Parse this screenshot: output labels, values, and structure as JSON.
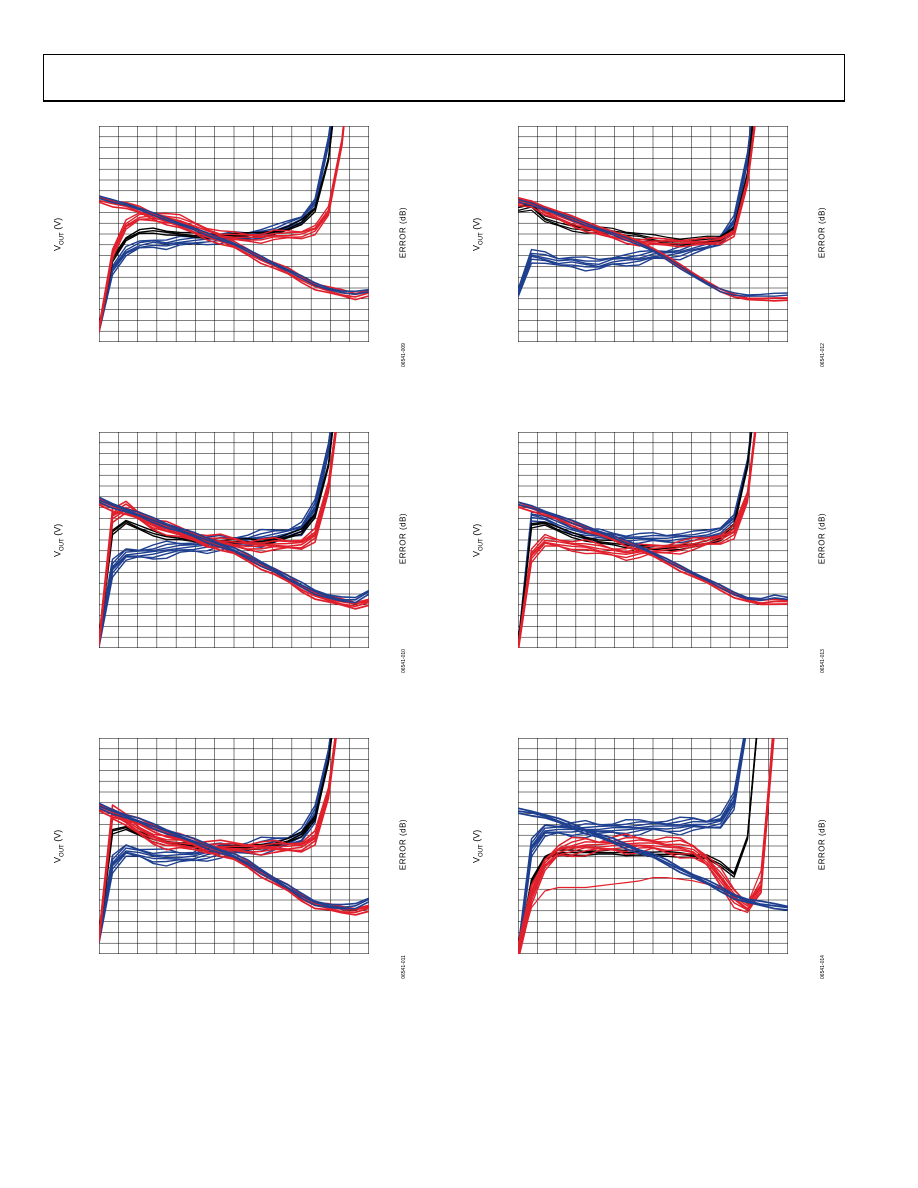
{
  "colors": {
    "blue": "#1f3f8f",
    "red": "#e0202c",
    "black": "#000000",
    "grid": "#000000"
  },
  "chart_data": [
    {
      "type": "line",
      "vout_label": "V",
      "vout_sub": "OUT",
      "vout_unit": " (V)",
      "error_label": "ERROR (dB)",
      "fig_id": "06541-009",
      "x": [
        0,
        5,
        10,
        15,
        20,
        25,
        30,
        35,
        40,
        45,
        50,
        55,
        60,
        65,
        70,
        75,
        80,
        85,
        90,
        95,
        100
      ],
      "series": [
        {
          "color": "blue",
          "spread": 5,
          "width": 1.4,
          "y": [
            -2.6,
            -0.8,
            -0.3,
            -0.1,
            0,
            -0.05,
            0,
            0.05,
            0.1,
            0.1,
            0.15,
            0.2,
            0.3,
            0.35,
            0.5,
            0.7,
            1.2,
            3,
            6,
            9,
            12
          ]
        },
        {
          "color": "black",
          "spread": 3,
          "width": 1.4,
          "y": [
            -2.6,
            -0.5,
            0.1,
            0.3,
            0.35,
            0.3,
            0.25,
            0.2,
            0.2,
            0.2,
            0.2,
            0.2,
            0.25,
            0.3,
            0.4,
            0.6,
            1.0,
            2.5,
            6,
            10,
            14
          ]
        },
        {
          "color": "red",
          "spread": 5,
          "width": 1.4,
          "y": [
            -2.6,
            -0.3,
            0.5,
            0.75,
            0.8,
            0.75,
            0.65,
            0.5,
            0.35,
            0.2,
            0.15,
            0.15,
            0.15,
            0.2,
            0.2,
            0.25,
            0.4,
            0.9,
            3,
            7,
            12
          ]
        },
        {
          "color": "red",
          "spread": 4,
          "width": 1.6,
          "y": [
            1.3,
            1.2,
            1.1,
            0.95,
            0.8,
            0.65,
            0.5,
            0.35,
            0.2,
            0.05,
            -0.1,
            -0.3,
            -0.5,
            -0.7,
            -0.9,
            -1.1,
            -1.3,
            -1.45,
            -1.55,
            -1.6,
            -1.5
          ]
        },
        {
          "color": "blue",
          "spread": 2,
          "width": 1.6,
          "y": [
            1.35,
            1.25,
            1.15,
            1.0,
            0.85,
            0.7,
            0.55,
            0.4,
            0.25,
            0.1,
            -0.05,
            -0.25,
            -0.45,
            -0.65,
            -0.85,
            -1.05,
            -1.25,
            -1.4,
            -1.5,
            -1.52,
            -1.45
          ]
        }
      ]
    },
    {
      "type": "line",
      "vout_label": "V",
      "vout_sub": "OUT",
      "vout_unit": " (V)",
      "error_label": "ERROR (dB)",
      "fig_id": "06541-012",
      "x": [
        0,
        5,
        10,
        15,
        20,
        25,
        30,
        35,
        40,
        45,
        50,
        55,
        60,
        65,
        70,
        75,
        80,
        85,
        90,
        95,
        100
      ],
      "series": [
        {
          "color": "blue",
          "spread": 6,
          "width": 1.4,
          "y": [
            -1.5,
            -0.4,
            -0.5,
            -0.6,
            -0.55,
            -0.65,
            -0.7,
            -0.55,
            -0.5,
            -0.5,
            -0.4,
            -0.35,
            -0.3,
            -0.2,
            -0.1,
            0.1,
            0.6,
            2.5,
            6,
            10,
            14
          ]
        },
        {
          "color": "black",
          "spread": 4,
          "width": 1.2,
          "y": [
            1.0,
            1.1,
            0.7,
            0.55,
            0.45,
            0.4,
            0.35,
            0.3,
            0.25,
            0.2,
            0.1,
            0.05,
            0.05,
            0.05,
            0.05,
            0.1,
            0.4,
            2,
            6,
            10,
            14
          ]
        },
        {
          "color": "red",
          "spread": 4,
          "width": 1.6,
          "y": [
            1.2,
            1.2,
            0.9,
            0.75,
            0.6,
            0.45,
            0.3,
            0.2,
            0.1,
            0.0,
            0.0,
            0.0,
            0.0,
            0.0,
            0.0,
            0.05,
            0.3,
            1.8,
            5,
            9,
            13
          ]
        },
        {
          "color": "red",
          "spread": 2,
          "width": 1.8,
          "y": [
            1.3,
            1.2,
            1.05,
            0.9,
            0.75,
            0.6,
            0.45,
            0.3,
            0.15,
            0,
            -0.2,
            -0.45,
            -0.7,
            -0.95,
            -1.2,
            -1.45,
            -1.6,
            -1.7,
            -1.72,
            -1.72,
            -1.7
          ]
        },
        {
          "color": "blue",
          "spread": 2,
          "width": 1.4,
          "y": [
            1.25,
            1.15,
            1.0,
            0.85,
            0.7,
            0.55,
            0.4,
            0.25,
            0.1,
            -0.05,
            -0.25,
            -0.5,
            -0.75,
            -1.0,
            -1.25,
            -1.45,
            -1.55,
            -1.6,
            -1.6,
            -1.58,
            -1.55
          ]
        }
      ]
    },
    {
      "type": "line",
      "vout_label": "V",
      "vout_sub": "OUT",
      "vout_unit": " (V)",
      "error_label": "ERROR (dB)",
      "fig_id": "06541-010",
      "x": [
        0,
        5,
        10,
        15,
        20,
        25,
        30,
        35,
        40,
        45,
        50,
        55,
        60,
        65,
        70,
        75,
        80,
        85,
        90,
        95,
        100
      ],
      "series": [
        {
          "color": "blue",
          "spread": 7,
          "width": 1.4,
          "y": [
            -2.8,
            -0.6,
            -0.2,
            -0.15,
            -0.1,
            -0.05,
            0,
            0.05,
            0.1,
            0.15,
            0.2,
            0.25,
            0.3,
            0.35,
            0.45,
            0.6,
            1.2,
            3,
            6,
            10,
            14
          ]
        },
        {
          "color": "black",
          "spread": 3,
          "width": 1.4,
          "y": [
            -2.8,
            0.5,
            0.8,
            0.6,
            0.45,
            0.35,
            0.3,
            0.25,
            0.2,
            0.2,
            0.2,
            0.2,
            0.2,
            0.25,
            0.35,
            0.5,
            1.0,
            2.5,
            6,
            10,
            14
          ]
        },
        {
          "color": "red",
          "spread": 6,
          "width": 1.6,
          "y": [
            -2.8,
            1.0,
            1.2,
            0.95,
            0.75,
            0.6,
            0.45,
            0.35,
            0.25,
            0.2,
            0.15,
            0.1,
            0.1,
            0.1,
            0.1,
            0.15,
            0.4,
            1.8,
            5,
            9,
            13
          ]
        },
        {
          "color": "red",
          "spread": 4,
          "width": 1.8,
          "y": [
            1.4,
            1.25,
            1.1,
            0.95,
            0.8,
            0.65,
            0.5,
            0.35,
            0.2,
            0.05,
            -0.1,
            -0.3,
            -0.5,
            -0.7,
            -0.95,
            -1.2,
            -1.4,
            -1.55,
            -1.65,
            -1.7,
            -1.6
          ]
        },
        {
          "color": "blue",
          "spread": 3,
          "width": 1.6,
          "y": [
            1.45,
            1.3,
            1.15,
            1.0,
            0.85,
            0.7,
            0.55,
            0.4,
            0.25,
            0.1,
            -0.05,
            -0.25,
            -0.45,
            -0.65,
            -0.9,
            -1.1,
            -1.3,
            -1.45,
            -1.55,
            -1.55,
            -1.3
          ]
        }
      ]
    },
    {
      "type": "line",
      "vout_label": "V",
      "vout_sub": "OUT",
      "vout_unit": " (V)",
      "error_label": "ERROR (dB)",
      "fig_id": "06541-013",
      "x": [
        0,
        5,
        10,
        15,
        20,
        25,
        30,
        35,
        40,
        45,
        50,
        55,
        60,
        65,
        70,
        75,
        80,
        85,
        90,
        95,
        100
      ],
      "series": [
        {
          "color": "blue",
          "spread": 5,
          "width": 1.4,
          "y": [
            -3,
            1.0,
            0.9,
            0.7,
            0.55,
            0.45,
            0.4,
            0.35,
            0.3,
            0.3,
            0.3,
            0.3,
            0.35,
            0.35,
            0.4,
            0.55,
            0.9,
            2.5,
            6,
            10,
            14
          ]
        },
        {
          "color": "black",
          "spread": 3,
          "width": 1.4,
          "y": [
            -3,
            0.7,
            0.75,
            0.55,
            0.4,
            0.3,
            0.2,
            0.15,
            0.1,
            0.05,
            0.0,
            0.0,
            0.05,
            0.1,
            0.15,
            0.3,
            0.7,
            2.5,
            6,
            10,
            14
          ]
        },
        {
          "color": "red",
          "spread": 6,
          "width": 1.4,
          "y": [
            -3,
            -0.2,
            0.2,
            0.15,
            0.1,
            0.05,
            -0.05,
            -0.1,
            -0.15,
            -0.1,
            -0.05,
            0.0,
            0.05,
            0.1,
            0.2,
            0.3,
            0.5,
            1.5,
            5,
            9,
            13
          ]
        },
        {
          "color": "red",
          "spread": 3,
          "width": 1.8,
          "y": [
            1.3,
            1.2,
            1.05,
            0.9,
            0.75,
            0.6,
            0.45,
            0.3,
            0.15,
            0,
            -0.2,
            -0.4,
            -0.6,
            -0.8,
            -1.0,
            -1.2,
            -1.4,
            -1.55,
            -1.65,
            -1.6,
            -1.6
          ]
        },
        {
          "color": "blue",
          "spread": 2,
          "width": 1.6,
          "y": [
            1.35,
            1.25,
            1.1,
            0.95,
            0.8,
            0.65,
            0.5,
            0.35,
            0.2,
            0.05,
            -0.15,
            -0.35,
            -0.55,
            -0.75,
            -0.95,
            -1.15,
            -1.35,
            -1.5,
            -1.55,
            -1.45,
            -1.5
          ]
        }
      ]
    },
    {
      "type": "line",
      "vout_label": "V",
      "vout_sub": "OUT",
      "vout_unit": " (V)",
      "error_label": "ERROR (dB)",
      "fig_id": "06541-011",
      "x": [
        0,
        5,
        10,
        15,
        20,
        25,
        30,
        35,
        40,
        45,
        50,
        55,
        60,
        65,
        70,
        75,
        80,
        85,
        90,
        95,
        100
      ],
      "series": [
        {
          "color": "blue",
          "spread": 7,
          "width": 1.4,
          "y": [
            -2.5,
            -0.3,
            0.1,
            0.05,
            -0.05,
            -0.1,
            -0.1,
            -0.05,
            0.05,
            0.1,
            0.15,
            0.2,
            0.25,
            0.3,
            0.4,
            0.6,
            1.2,
            3,
            6,
            10,
            14
          ]
        },
        {
          "color": "black",
          "spread": 3,
          "width": 1.4,
          "y": [
            -2.5,
            0.7,
            0.8,
            0.6,
            0.45,
            0.35,
            0.3,
            0.25,
            0.2,
            0.2,
            0.2,
            0.2,
            0.25,
            0.3,
            0.4,
            0.6,
            1.1,
            2.8,
            6,
            10,
            14
          ]
        },
        {
          "color": "red",
          "spread": 6,
          "width": 1.6,
          "y": [
            -2.5,
            1.3,
            1.0,
            0.7,
            0.5,
            0.35,
            0.3,
            0.25,
            0.25,
            0.2,
            0.2,
            0.2,
            0.2,
            0.2,
            0.2,
            0.25,
            0.5,
            1.8,
            5,
            9,
            13
          ]
        },
        {
          "color": "red",
          "spread": 4,
          "width": 1.8,
          "y": [
            1.4,
            1.25,
            1.1,
            0.95,
            0.8,
            0.65,
            0.5,
            0.35,
            0.2,
            0.05,
            -0.1,
            -0.3,
            -0.55,
            -0.8,
            -1.05,
            -1.3,
            -1.5,
            -1.6,
            -1.7,
            -1.7,
            -1.6
          ]
        },
        {
          "color": "blue",
          "spread": 3,
          "width": 1.6,
          "y": [
            1.45,
            1.3,
            1.15,
            1.0,
            0.85,
            0.7,
            0.55,
            0.4,
            0.25,
            0.1,
            -0.05,
            -0.25,
            -0.5,
            -0.75,
            -1.0,
            -1.25,
            -1.45,
            -1.55,
            -1.6,
            -1.55,
            -1.35
          ]
        }
      ]
    },
    {
      "type": "line",
      "vout_label": "V",
      "vout_sub": "OUT",
      "vout_unit": " (V)",
      "error_label": "ERROR (dB)",
      "fig_id": "06541-014",
      "x": [
        0,
        5,
        10,
        15,
        20,
        25,
        30,
        35,
        40,
        45,
        50,
        55,
        60,
        65,
        70,
        75,
        80,
        85,
        90,
        95,
        100
      ],
      "series": [
        {
          "color": "blue",
          "spread": 7,
          "width": 1.4,
          "y": [
            -3,
            0.2,
            0.7,
            0.75,
            0.75,
            0.75,
            0.75,
            0.8,
            0.8,
            0.8,
            0.85,
            0.85,
            0.85,
            0.9,
            0.9,
            1.0,
            1.6,
            4,
            8,
            12,
            14
          ]
        },
        {
          "color": "black",
          "spread": 3,
          "width": 1.4,
          "y": [
            -3,
            -0.8,
            -0.1,
            0.05,
            0.05,
            0.05,
            0.05,
            0.05,
            0.05,
            0.05,
            0.0,
            0.0,
            0.0,
            -0.05,
            -0.1,
            -0.3,
            -0.6,
            0.5,
            5,
            10,
            14
          ]
        },
        {
          "color": "red",
          "spread": 8,
          "width": 1.4,
          "y": [
            -3,
            -1.2,
            -0.3,
            0.1,
            0.2,
            0.25,
            0.25,
            0.3,
            0.3,
            0.3,
            0.3,
            0.25,
            0.2,
            0.1,
            -0.2,
            -0.7,
            -1.3,
            -1.6,
            -1.0,
            4,
            12
          ]
        },
        {
          "color": "red",
          "spread": 1,
          "width": 1.2,
          "y": [
            -3,
            -1.6,
            -1.1,
            -1.0,
            -1.0,
            -1.0,
            -0.95,
            -0.9,
            -0.85,
            -0.8,
            -0.7,
            -0.7,
            -0.75,
            -0.8,
            -0.9,
            -1.0,
            -1.2,
            -1.5,
            -0.5,
            4,
            12
          ]
        },
        {
          "color": "blue",
          "spread": 3,
          "width": 1.8,
          "y": [
            1.3,
            1.25,
            1.15,
            1.0,
            0.85,
            0.7,
            0.55,
            0.4,
            0.25,
            0.1,
            -0.05,
            -0.25,
            -0.45,
            -0.65,
            -0.85,
            -1.05,
            -1.25,
            -1.4,
            -1.5,
            -1.55,
            -1.6
          ]
        }
      ]
    }
  ]
}
